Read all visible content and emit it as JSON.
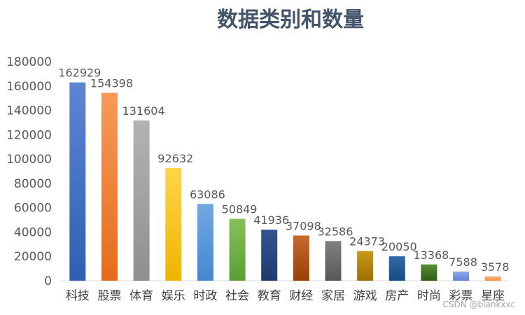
{
  "chart_data": {
    "type": "bar",
    "title": "数据类别和数量",
    "xlabel": "",
    "ylabel": "",
    "ylim": [
      0,
      180000
    ],
    "yticks": [
      0,
      20000,
      40000,
      60000,
      80000,
      100000,
      120000,
      140000,
      160000,
      180000
    ],
    "grid": false,
    "legend": "none",
    "data_labels": true,
    "categories": [
      "科技",
      "股票",
      "体育",
      "娱乐",
      "时政",
      "社会",
      "教育",
      "财经",
      "家居",
      "游戏",
      "房产",
      "时尚",
      "彩票",
      "星座"
    ],
    "values": [
      162929,
      154398,
      131604,
      92632,
      63086,
      50849,
      41936,
      37098,
      32586,
      24373,
      20050,
      13368,
      7588,
      3578
    ],
    "colors": [
      [
        "#5b86d3",
        "#2f5fb4"
      ],
      [
        "#f79a5a",
        "#e46c1b"
      ],
      [
        "#b3b3b3",
        "#8f8f8f"
      ],
      [
        "#ffd54a",
        "#f0b400"
      ],
      [
        "#72a9e3",
        "#4586cf"
      ],
      [
        "#84c15a",
        "#5b9e36"
      ],
      [
        "#35558f",
        "#1e3a70"
      ],
      [
        "#c86a2c",
        "#9a3e0a"
      ],
      [
        "#7f7f7f",
        "#595959"
      ],
      [
        "#c99a1c",
        "#9c7000"
      ],
      [
        "#2e6ca8",
        "#174c85"
      ],
      [
        "#568c34",
        "#2f5c16"
      ],
      [
        "#8eaae6",
        "#5c83d6"
      ],
      [
        "#f8b57f",
        "#f2904a"
      ]
    ]
  },
  "watermark": "CSDN @blankxxc"
}
